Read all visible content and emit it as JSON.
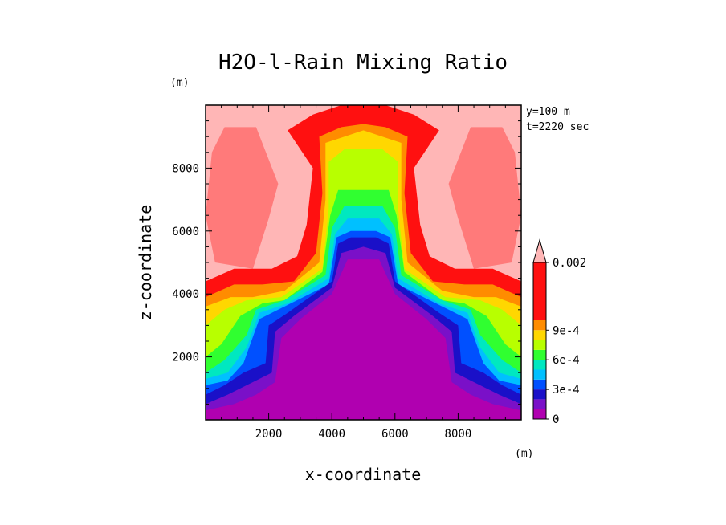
{
  "chart_data": {
    "type": "heatmap",
    "title": "H2O-l-Rain Mixing Ratio",
    "xlabel": "x-coordinate",
    "ylabel": "z-coordinate",
    "x_unit": "(m)",
    "y_unit": "(m)",
    "annotations": [
      "y=100 m",
      "t=2220 sec"
    ],
    "xlim": [
      0,
      10000
    ],
    "ylim": [
      0,
      10000
    ],
    "x_ticks": [
      2000,
      4000,
      6000,
      8000
    ],
    "y_ticks": [
      2000,
      4000,
      6000,
      8000
    ],
    "x_tick_labels": [
      "2000",
      "4000",
      "6000",
      "8000"
    ],
    "y_tick_labels": [
      "2000",
      "4000",
      "6000",
      "8000"
    ],
    "colorbar": {
      "levels": [
        0,
        0.0001,
        0.0002,
        0.0003,
        0.0004,
        0.0005,
        0.0006,
        0.0007,
        0.0008,
        0.0009,
        0.001,
        0.002
      ],
      "colors": [
        "#b000b0",
        "#7a10c8",
        "#1a10c8",
        "#0050ff",
        "#00c0ff",
        "#00e8c0",
        "#30ff30",
        "#b8ff00",
        "#ffd700",
        "#ff8c00",
        "#ff1010",
        "#ff7a7a",
        "#ffb6b6"
      ],
      "tick_labels": [
        "0",
        "3e-4",
        "6e-4",
        "9e-4",
        "0.002"
      ],
      "tick_level_index": [
        0,
        3,
        6,
        9,
        11
      ],
      "extend": "max"
    },
    "field_description_contours": [
      {
        "level_index": 12,
        "bounds": "full domain background (>0.002)"
      },
      {
        "level_index": 11,
        "value_range": [
          0.001,
          0.002
        ]
      }
    ]
  }
}
